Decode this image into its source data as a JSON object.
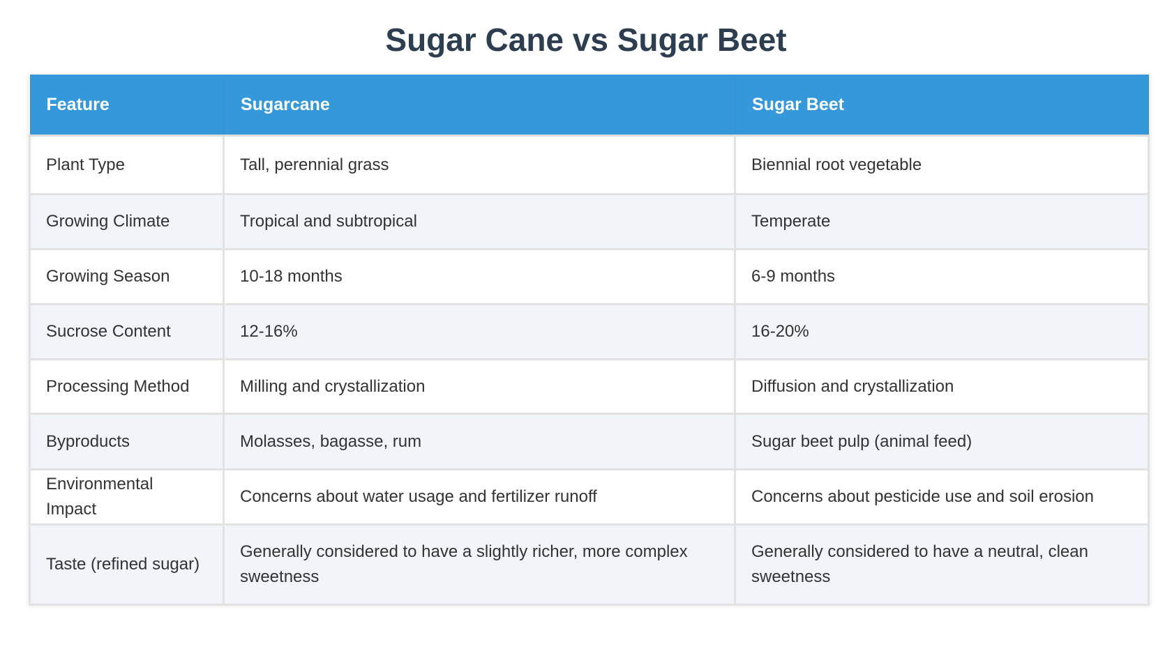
{
  "title": "Sugar Cane vs Sugar Beet",
  "headers": [
    "Feature",
    "Sugarcane",
    "Sugar Beet"
  ],
  "rows": [
    [
      "Plant Type",
      "Tall, perennial grass",
      "Biennial root vegetable"
    ],
    [
      "Growing Climate",
      "Tropical and subtropical",
      "Temperate"
    ],
    [
      "Growing Season",
      "10-18 months",
      "6-9 months"
    ],
    [
      "Sucrose Content",
      "12-16%",
      "16-20%"
    ],
    [
      "Processing Method",
      "Milling and crystallization",
      "Diffusion and crystallization"
    ],
    [
      "Byproducts",
      "Molasses, bagasse, rum",
      "Sugar beet pulp (animal feed)"
    ],
    [
      "Environmental Impact",
      "Concerns about water usage and fertilizer runoff",
      "Concerns about pesticide use and soil erosion"
    ],
    [
      "Taste (refined sugar)",
      "Generally considered to have a slightly richer, more complex sweetness",
      "Generally considered to have a neutral, clean sweetness"
    ]
  ],
  "colors": {
    "header": "#3498db",
    "title": "#2c3e50",
    "alt_row": "#f1f4f8"
  }
}
